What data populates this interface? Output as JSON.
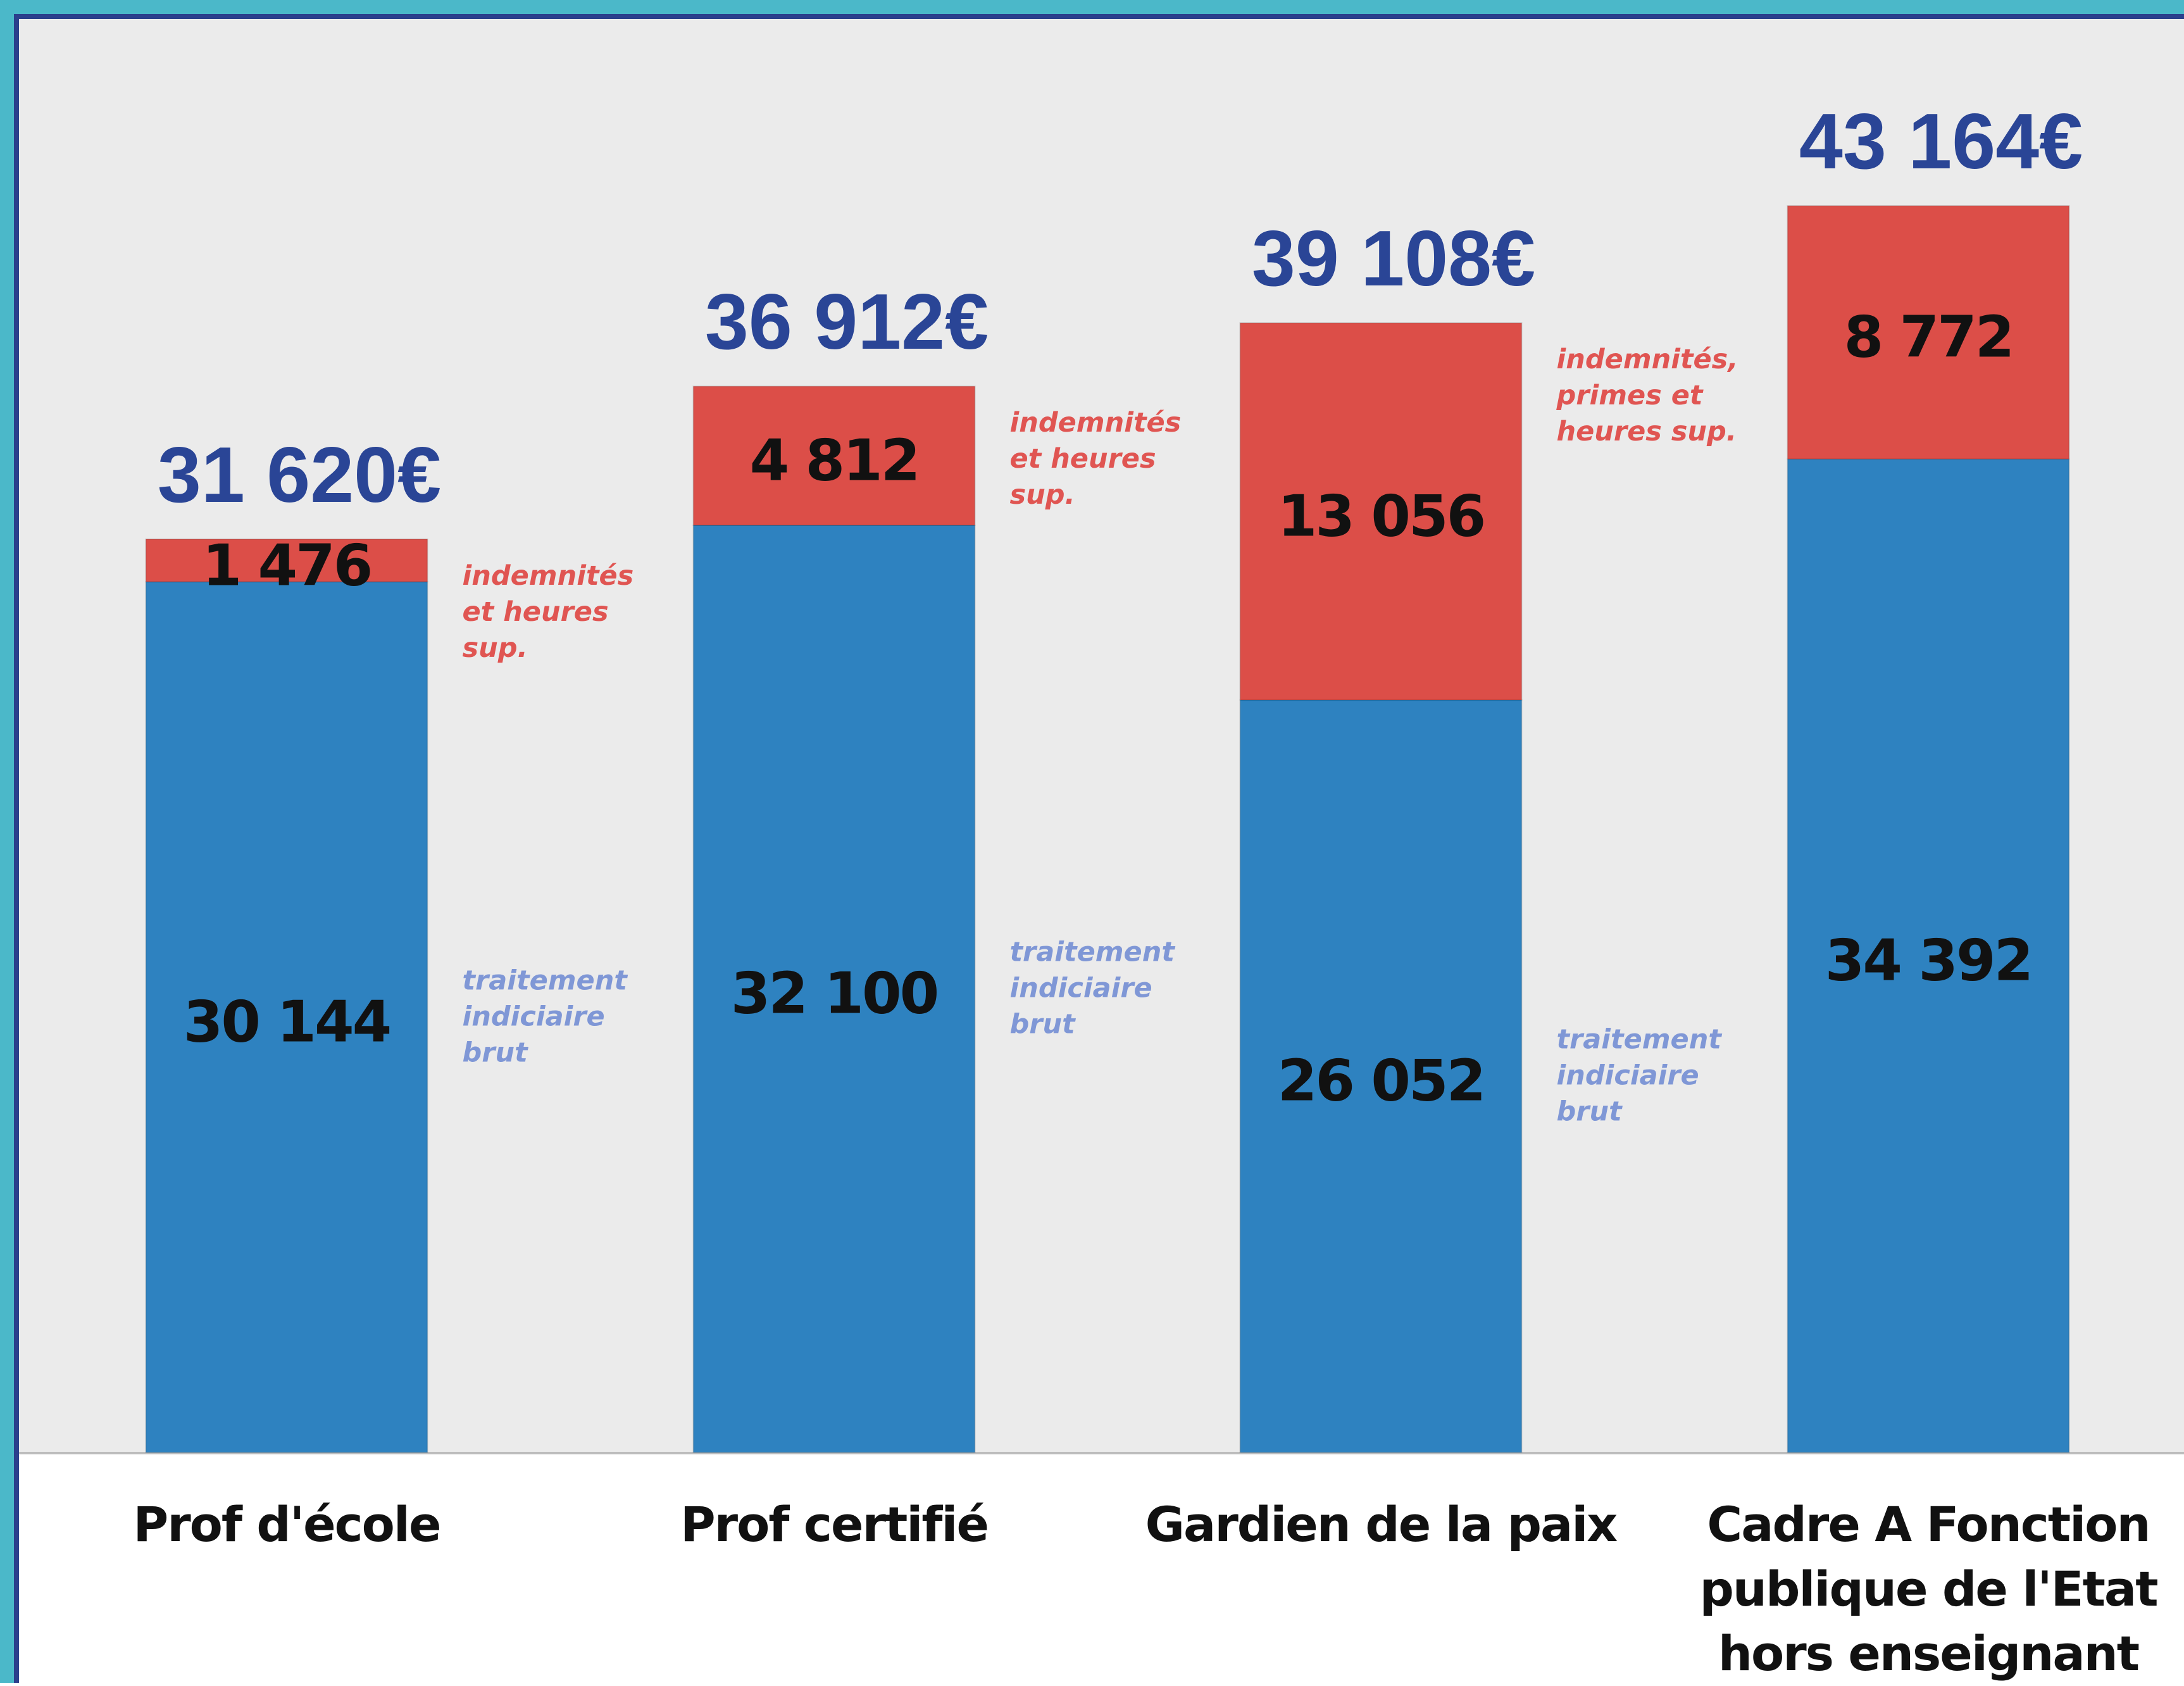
{
  "chart_data": {
    "type": "stacked_bar",
    "categories": [
      "Prof d'école",
      "Prof certifié",
      "Gardien de la paix",
      "Cadre A Fonction publique de l'Etat hors enseignant"
    ],
    "total_labels": [
      "31 620€",
      "36 912€",
      "39 108€",
      "43 164€"
    ],
    "series": [
      {
        "color": "#2e82c0",
        "values": [
          30144,
          32100,
          26052,
          34392
        ],
        "value_labels": [
          "30 144",
          "32 100",
          "26 052",
          "34 392"
        ],
        "annotation_color": "#7f97d6",
        "annotations": [
          "traitement indiciaire brut",
          "traitement indiciaire brut",
          "traitement indiciaire brut",
          null
        ]
      },
      {
        "color": "#dc4e48",
        "values": [
          1476,
          4812,
          13056,
          8772
        ],
        "value_labels": [
          "1 476",
          "4 812",
          "13 056",
          "8 772"
        ],
        "annotation_color": "#e05552",
        "annotations": [
          "indemnités et heures sup.",
          "indemnités et heures sup.",
          "indemnités, primes et heures sup.",
          null
        ]
      }
    ],
    "ylim": [
      0,
      50000
    ]
  }
}
